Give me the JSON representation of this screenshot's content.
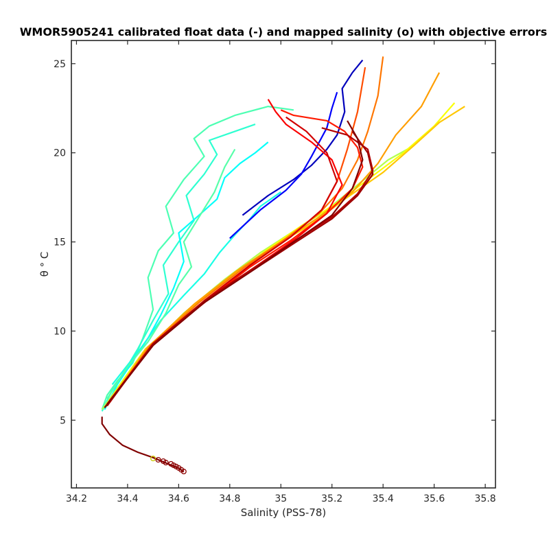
{
  "chart_data": {
    "type": "line",
    "title": "WMOR5905241 calibrated float data (-) and mapped salinity (o) with objective errors",
    "xlabel": "Salinity (PSS-78)",
    "ylabel": "θ ° C",
    "xlim": [
      34.18,
      35.84
    ],
    "ylim": [
      1.2,
      26.3
    ],
    "xticks": [
      34.2,
      34.4,
      34.6,
      34.8,
      35,
      35.2,
      35.4,
      35.6,
      35.8
    ],
    "xtick_labels": [
      "34.2",
      "34.4",
      "34.6",
      "34.8",
      "35",
      "35.2",
      "35.4",
      "35.6",
      "35.8"
    ],
    "yticks": [
      5,
      10,
      15,
      20,
      25
    ],
    "ytick_labels": [
      "5",
      "10",
      "15",
      "20",
      "25"
    ],
    "grid": false,
    "colormap": [
      "#00008f",
      "#0000ff",
      "#0080ff",
      "#00ffff",
      "#80ff80",
      "#ffff00",
      "#ff8000",
      "#ff0000",
      "#800000"
    ],
    "series_note": "profiles colored by cycle number (jet colormap), approximate",
    "series": [
      {
        "color_index": 0.45,
        "x": [
          34.3,
          34.32,
          34.36,
          34.42,
          34.46,
          34.5,
          34.48,
          34.52,
          34.58,
          34.55,
          34.62,
          34.7,
          34.66,
          34.72,
          34.82,
          34.95,
          35.05
        ],
        "y": [
          5.6,
          6.4,
          7.2,
          8.2,
          9.6,
          11.2,
          13.0,
          14.5,
          15.5,
          17.0,
          18.5,
          19.8,
          20.8,
          21.5,
          22.1,
          22.6,
          22.4
        ]
      },
      {
        "color_index": 0.42,
        "x": [
          34.3,
          34.34,
          34.39,
          34.44,
          34.5,
          34.56,
          34.54,
          34.6,
          34.66,
          34.63,
          34.7,
          34.75,
          34.72,
          34.8,
          34.9
        ],
        "y": [
          5.5,
          6.7,
          7.8,
          9.0,
          10.6,
          12.1,
          13.7,
          15.0,
          16.2,
          17.6,
          18.8,
          19.9,
          20.7,
          21.1,
          21.6
        ]
      },
      {
        "color_index": 0.38,
        "x": [
          34.31,
          34.36,
          34.42,
          34.48,
          34.53,
          34.58,
          34.62,
          34.6,
          34.68,
          34.75,
          34.78,
          34.84,
          34.9,
          34.95
        ],
        "y": [
          5.6,
          7.0,
          8.3,
          9.6,
          10.9,
          12.4,
          13.9,
          15.5,
          16.5,
          17.4,
          18.6,
          19.4,
          20.0,
          20.6
        ]
      },
      {
        "color_index": 0.4,
        "x": [
          34.34,
          34.45,
          34.53,
          34.62,
          34.7,
          34.76,
          34.82,
          34.88,
          34.92,
          35.0
        ],
        "y": [
          7.0,
          9.0,
          10.6,
          12.0,
          13.2,
          14.4,
          15.4,
          16.3,
          17.0,
          17.8
        ]
      },
      {
        "color_index": 0.46,
        "x": [
          34.32,
          34.4,
          34.48,
          34.55,
          34.6,
          34.65,
          34.62,
          34.68,
          34.74,
          34.78,
          34.82
        ],
        "y": [
          6.2,
          8.0,
          9.4,
          11.0,
          12.6,
          13.6,
          15.0,
          16.4,
          17.8,
          19.2,
          20.2
        ]
      },
      {
        "color_index": 0.05,
        "x": [
          34.85,
          34.95,
          35.05,
          35.12,
          35.18,
          35.22,
          35.25,
          35.24,
          35.28,
          35.32
        ],
        "y": [
          16.5,
          17.6,
          18.5,
          19.3,
          20.2,
          21.0,
          22.3,
          23.6,
          24.5,
          25.2
        ]
      },
      {
        "color_index": 0.12,
        "x": [
          34.8,
          34.92,
          35.02,
          35.08,
          35.12,
          35.15,
          35.18,
          35.2,
          35.22
        ],
        "y": [
          15.2,
          16.8,
          17.9,
          18.8,
          19.8,
          20.6,
          21.4,
          22.5,
          23.4
        ]
      },
      {
        "color_index": 0.55,
        "x": [
          34.3,
          34.45,
          34.62,
          34.78,
          34.92,
          35.05,
          35.18,
          35.3,
          35.42,
          35.52
        ],
        "y": [
          5.6,
          8.6,
          11.0,
          12.9,
          14.4,
          15.6,
          16.8,
          18.2,
          19.6,
          20.4
        ]
      },
      {
        "color_index": 0.62,
        "x": [
          34.31,
          34.46,
          34.64,
          34.8,
          34.95,
          35.08,
          35.22,
          35.35,
          35.48,
          35.6,
          35.68
        ],
        "y": [
          5.7,
          8.8,
          11.2,
          13.0,
          14.6,
          15.9,
          17.2,
          18.6,
          20.0,
          21.5,
          22.8
        ]
      },
      {
        "color_index": 0.68,
        "x": [
          34.32,
          34.47,
          34.66,
          34.82,
          34.98,
          35.12,
          35.25,
          35.4,
          35.52,
          35.62,
          35.72
        ],
        "y": [
          5.8,
          9.0,
          11.4,
          13.3,
          14.8,
          16.0,
          17.4,
          18.9,
          20.4,
          21.7,
          22.6
        ]
      },
      {
        "color_index": 0.72,
        "x": [
          34.33,
          34.48,
          34.66,
          34.84,
          35.0,
          35.14,
          35.28,
          35.38,
          35.45,
          35.55,
          35.62
        ],
        "y": [
          6.0,
          9.1,
          11.5,
          13.5,
          15.0,
          16.3,
          17.8,
          19.4,
          21.0,
          22.6,
          24.5
        ]
      },
      {
        "color_index": 0.76,
        "x": [
          34.33,
          34.49,
          34.68,
          34.86,
          35.02,
          35.15,
          35.24,
          35.3,
          35.34,
          35.38,
          35.4
        ],
        "y": [
          6.0,
          9.2,
          11.6,
          13.6,
          15.2,
          16.6,
          18.0,
          19.6,
          21.2,
          23.2,
          25.4
        ]
      },
      {
        "color_index": 0.8,
        "x": [
          34.33,
          34.5,
          34.7,
          34.88,
          35.04,
          35.16,
          35.22,
          35.26,
          35.3,
          35.33
        ],
        "y": [
          6.1,
          9.3,
          11.7,
          13.7,
          15.3,
          16.8,
          18.4,
          20.2,
          22.3,
          24.8
        ]
      },
      {
        "color_index": 0.85,
        "x": [
          34.32,
          34.5,
          34.7,
          34.88,
          35.04,
          35.18,
          35.28,
          35.32,
          35.3,
          35.25,
          35.18,
          35.05,
          35.0
        ],
        "y": [
          5.9,
          9.2,
          11.6,
          13.6,
          15.1,
          16.6,
          18.0,
          19.2,
          20.3,
          21.2,
          21.8,
          22.1,
          22.4
        ]
      },
      {
        "color_index": 0.88,
        "x": [
          34.32,
          34.5,
          34.71,
          34.9,
          35.06,
          35.18,
          35.24,
          35.2,
          35.12,
          35.02,
          34.98,
          34.95
        ],
        "y": [
          5.9,
          9.3,
          11.7,
          13.6,
          15.2,
          16.6,
          18.2,
          19.6,
          20.6,
          21.6,
          22.3,
          23.0
        ]
      },
      {
        "color_index": 0.92,
        "x": [
          34.32,
          34.5,
          34.7,
          34.88,
          35.04,
          35.16,
          35.22,
          35.18,
          35.1,
          35.02
        ],
        "y": [
          5.9,
          9.3,
          11.7,
          13.7,
          15.3,
          16.8,
          18.4,
          20.0,
          21.2,
          22.0
        ]
      },
      {
        "color_index": 0.95,
        "x": [
          34.32,
          34.5,
          34.7,
          34.9,
          35.06,
          35.2,
          35.3,
          35.36,
          35.34,
          35.26,
          35.16
        ],
        "y": [
          5.8,
          9.3,
          11.7,
          13.6,
          15.1,
          16.4,
          17.7,
          19.0,
          20.2,
          21.0,
          21.4
        ]
      },
      {
        "color_index": 0.97,
        "x": [
          34.31,
          34.5,
          34.7,
          34.9,
          35.06,
          35.2,
          35.3,
          35.36,
          35.34,
          35.28
        ],
        "y": [
          5.7,
          9.2,
          11.6,
          13.5,
          15.0,
          16.3,
          17.6,
          18.8,
          20.0,
          21.2
        ]
      },
      {
        "color_index": 1.0,
        "x": [
          34.31,
          34.5,
          34.7,
          34.9,
          35.06,
          35.2,
          35.28,
          35.32,
          35.3,
          35.26
        ],
        "y": [
          5.7,
          9.2,
          11.6,
          13.5,
          15.1,
          16.5,
          18.0,
          19.6,
          20.8,
          21.8
        ]
      },
      {
        "color_index": 1.0,
        "x": [
          34.3,
          34.3,
          34.33,
          34.38,
          34.44,
          34.5,
          34.55,
          34.6,
          34.62
        ],
        "y": [
          5.2,
          4.8,
          4.2,
          3.6,
          3.2,
          2.9,
          2.6,
          2.3,
          2.1
        ]
      }
    ],
    "mapped_points": {
      "x": [
        34.5,
        34.52,
        34.54,
        34.55,
        34.57,
        34.58,
        34.59,
        34.6,
        34.61,
        34.62
      ],
      "y": [
        2.85,
        2.78,
        2.7,
        2.62,
        2.55,
        2.47,
        2.4,
        2.32,
        2.22,
        2.12
      ]
    }
  }
}
